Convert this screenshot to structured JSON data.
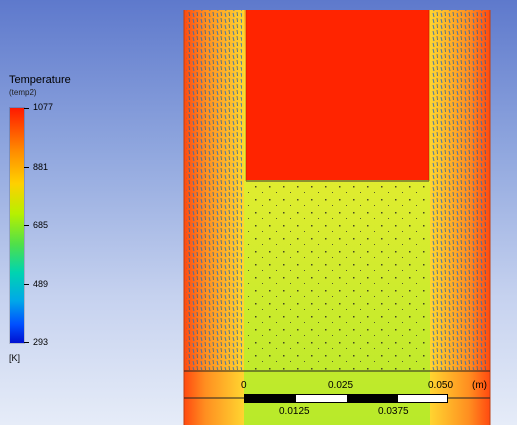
{
  "legend": {
    "title": "Temperature",
    "subtitle": "(temp2)",
    "ticks": [
      "1077",
      "881",
      "685",
      "489",
      "293"
    ],
    "unit": "[K]"
  },
  "scale_bar": {
    "top_labels": [
      "0",
      "0.025",
      "0.050"
    ],
    "bottom_labels": [
      "0.0125",
      "0.0375"
    ],
    "unit": "(m)"
  },
  "colors": {
    "hot": "#ff2a00",
    "warm": "#ff9a00",
    "mid": "#c8f000",
    "cool": "#00a0ff",
    "cold": "#0010d0"
  }
}
